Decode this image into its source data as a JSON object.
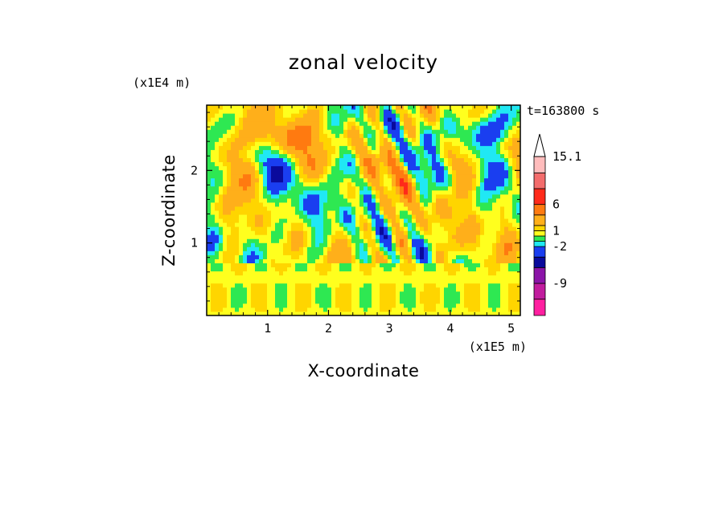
{
  "chart_data": {
    "type": "heatmap",
    "title": "zonal velocity",
    "xlabel": "X-coordinate",
    "ylabel": "Z-coordinate",
    "x_unit": "(x1E5 m)",
    "y_unit": "(x1E4 m)",
    "time_label": "t=163800 s",
    "xlim": [
      0,
      5.15
    ],
    "ylim": [
      0,
      2.9
    ],
    "x_ticks": [
      1,
      2,
      3,
      4,
      5
    ],
    "y_ticks": [
      1,
      2
    ],
    "colorbar": {
      "levels": [
        -15.1,
        -12,
        -9,
        -6,
        -4,
        -2,
        -1,
        0,
        1,
        2,
        4,
        6,
        9,
        12,
        15.1
      ],
      "labels": [
        "15.1",
        "6",
        "1",
        "-2",
        "-9"
      ],
      "label_values": [
        15.1,
        6,
        1,
        -2,
        -9
      ],
      "colors": [
        "#ff1fa0",
        "#c11c9e",
        "#8b14a8",
        "#0a0a9c",
        "#1a3ef0",
        "#20e8f4",
        "#2ee852",
        "#ffff1e",
        "#ffd500",
        "#ffaf1a",
        "#ff7a10",
        "#ff2a1a",
        "#f36c6c",
        "#ffbcbc"
      ],
      "extend": "max"
    },
    "field_note": "",
    "grid": false,
    "legend": "colorbar-right"
  }
}
